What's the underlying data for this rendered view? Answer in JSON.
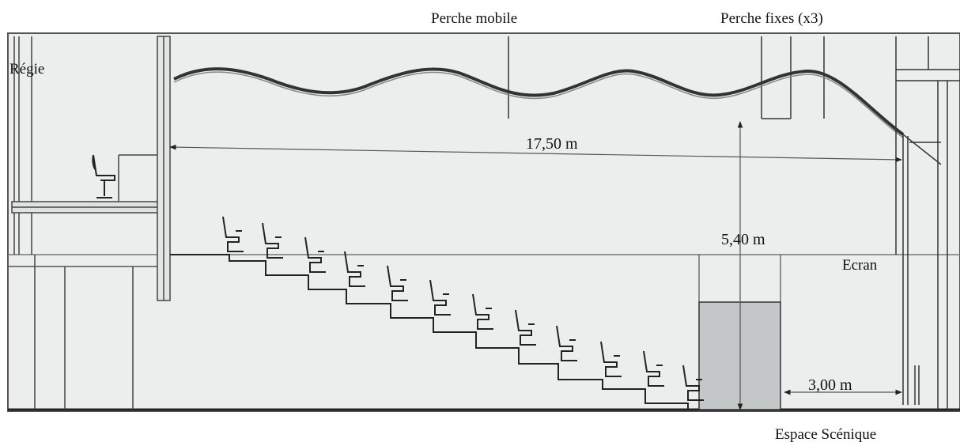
{
  "labels": {
    "control_room": "Régie",
    "mobile_bar": "Perche mobile",
    "fixed_bars": "Perche fixes (x3)",
    "screen": "Ecran",
    "stage_space": "Espace Scénique"
  },
  "dimensions": {
    "hall_length": "17,50 m",
    "height": "5,40 m",
    "stage_depth": "3,00 m"
  },
  "colors": {
    "line": "#3a3a3a",
    "wall_fill": "#e6e8e8",
    "stage_fill": "#c3c7c8",
    "background": "#ffffff"
  },
  "seat_rows": 12
}
